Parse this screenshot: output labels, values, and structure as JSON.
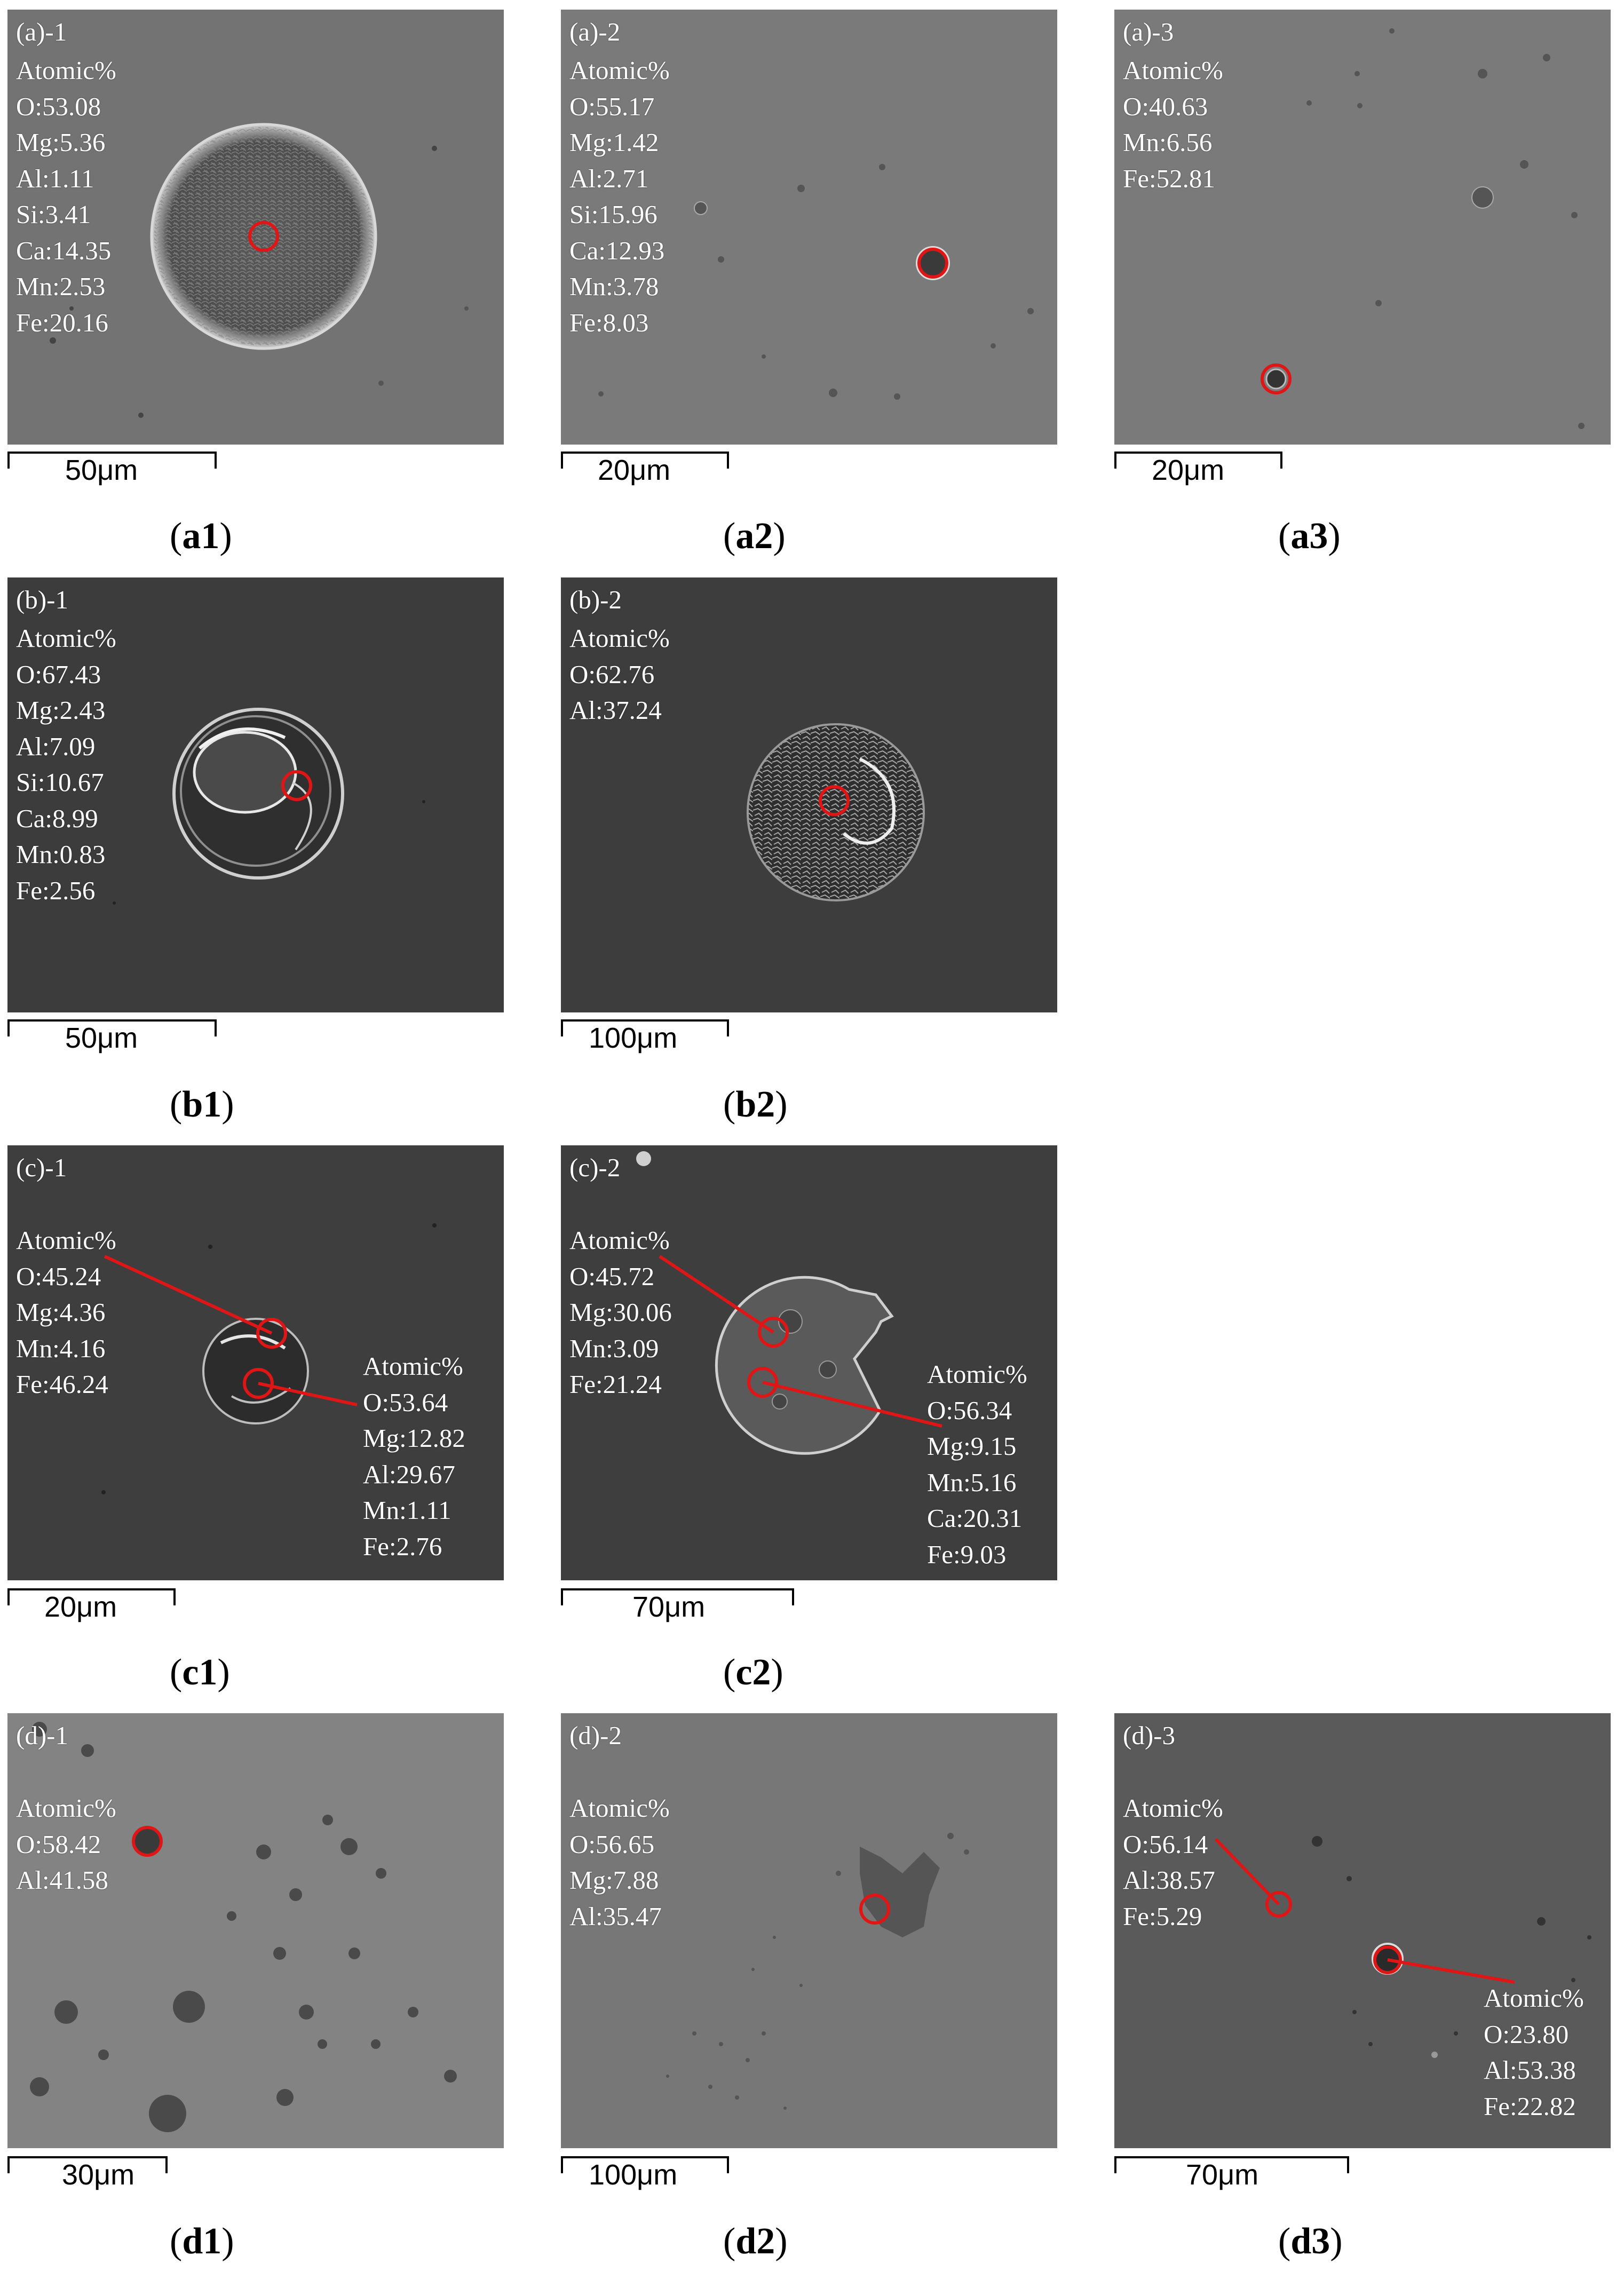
{
  "panels": {
    "a1": {
      "tag": "(a)-1",
      "lines": [
        "Atomic%",
        "O:53.08",
        "Mg:5.36",
        "Al:1.11",
        "Si:3.41",
        "Ca:14.35",
        "Mn:2.53",
        "Fe:20.16"
      ],
      "scale": "50μm",
      "caption": "a1"
    },
    "a2": {
      "tag": "(a)-2",
      "lines": [
        "Atomic%",
        "O:55.17",
        "Mg:1.42",
        "Al:2.71",
        "Si:15.96",
        "Ca:12.93",
        "Mn:3.78",
        "Fe:8.03"
      ],
      "scale": "20μm",
      "caption": "a2"
    },
    "a3": {
      "tag": "(a)-3",
      "lines": [
        "Atomic%",
        "O:40.63",
        "Mn:6.56",
        "Fe:52.81"
      ],
      "scale": "20μm",
      "caption": "a3"
    },
    "b1": {
      "tag": "(b)-1",
      "lines": [
        "Atomic%",
        "O:67.43",
        "Mg:2.43",
        "Al:7.09",
        "Si:10.67",
        "Ca:8.99",
        "Mn:0.83",
        "Fe:2.56"
      ],
      "scale": "50μm",
      "caption": "b1"
    },
    "b2": {
      "tag": "(b)-2",
      "lines": [
        "Atomic%",
        "O:62.76",
        "Al:37.24"
      ],
      "scale": "100μm",
      "caption": "b2"
    },
    "c1": {
      "tag": "(c)-1",
      "lines": [
        "Atomic%",
        "O:45.24",
        "Mg:4.36",
        "Mn:4.16",
        "Fe:46.24"
      ],
      "lines2": [
        "Atomic%",
        "O:53.64",
        "Mg:12.82",
        "Al:29.67",
        "Mn:1.11",
        "Fe:2.76"
      ],
      "scale": "20μm",
      "caption": "c1"
    },
    "c2": {
      "tag": "(c)-2",
      "lines": [
        "Atomic%",
        "O:45.72",
        "Mg:30.06",
        "Mn:3.09",
        "Fe:21.24"
      ],
      "lines2": [
        "Atomic%",
        "O:56.34",
        "Mg:9.15",
        "Mn:5.16",
        "Ca:20.31",
        "Fe:9.03"
      ],
      "scale": "70μm",
      "caption": "c2"
    },
    "d1": {
      "tag": "(d)-1",
      "lines": [
        "Atomic%",
        "O:58.42",
        "Al:41.58"
      ],
      "scale": "30μm",
      "caption": "d1"
    },
    "d2": {
      "tag": "(d)-2",
      "lines": [
        "Atomic%",
        "O:56.65",
        "Mg:7.88",
        "Al:35.47"
      ],
      "scale": "100μm",
      "caption": "d2"
    },
    "d3": {
      "tag": "(d)-3",
      "lines": [
        "Atomic%",
        "O:56.14",
        "Al:38.57",
        "Fe:5.29"
      ],
      "lines2": [
        "Atomic%",
        "O:23.80",
        "Al:53.38",
        "Fe:22.82"
      ],
      "scale": "70μm",
      "caption": "d3"
    }
  },
  "colors": {
    "marker": "#e01515",
    "text": "#ffffff"
  }
}
